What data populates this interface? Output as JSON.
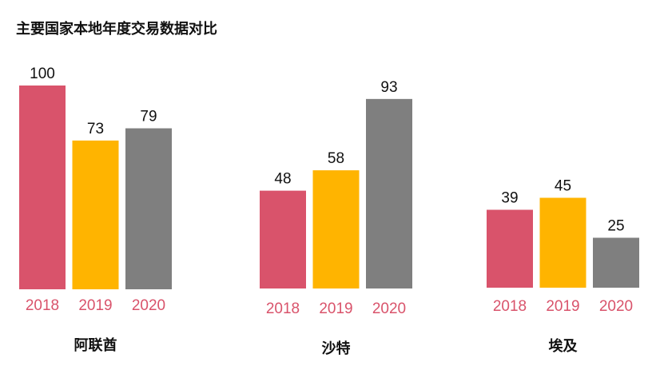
{
  "title": "主要国家本地年度交易数据对比",
  "colors": {
    "2018": "#d9536b",
    "2019": "#ffb400",
    "2020": "#7f7f7f",
    "tick": "#d9536b"
  },
  "chart_data": [
    {
      "type": "bar",
      "group": "阿联酋",
      "categories": [
        "2018",
        "2019",
        "2020"
      ],
      "values": [
        100,
        73,
        79
      ]
    },
    {
      "type": "bar",
      "group": "沙特",
      "categories": [
        "2018",
        "2019",
        "2020"
      ],
      "values": [
        48,
        58,
        93
      ]
    },
    {
      "type": "bar",
      "group": "埃及",
      "categories": [
        "2018",
        "2019",
        "2020"
      ],
      "values": [
        39,
        45,
        25
      ]
    }
  ]
}
